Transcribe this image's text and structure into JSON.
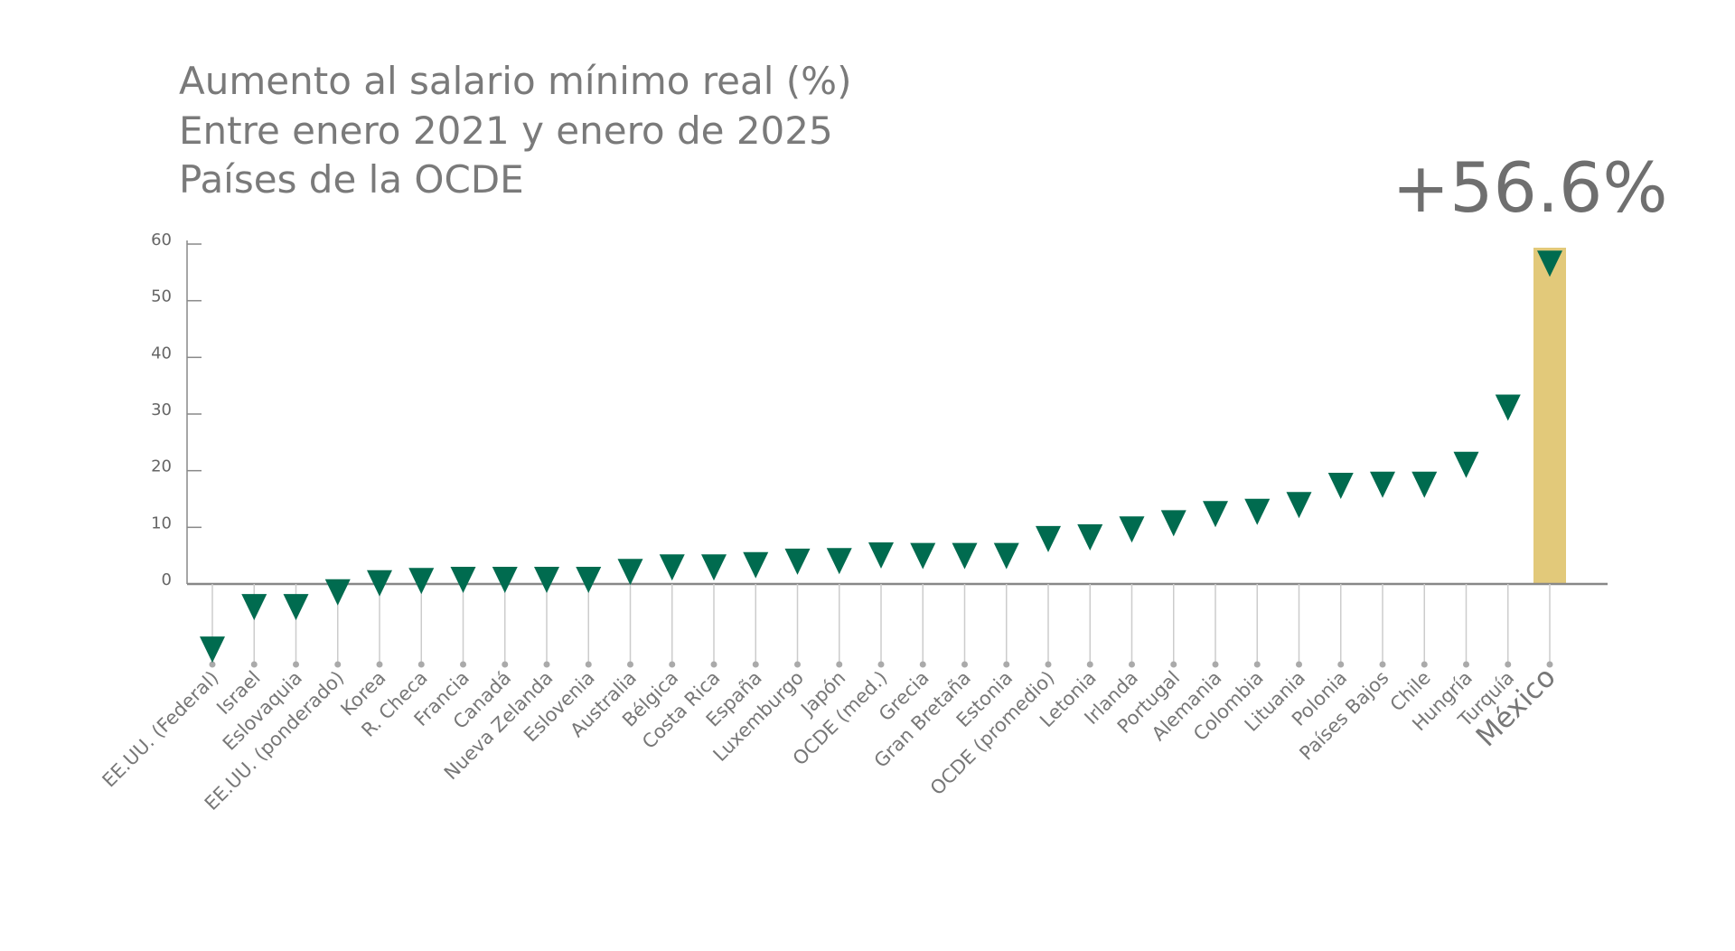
{
  "chart_data": {
    "type": "scatter",
    "title_lines": [
      "Aumento al salario mínimo real (%)",
      "Entre enero 2021 y enero de 2025",
      "Países de la OCDE"
    ],
    "categories": [
      "EE.UU. (Federal)",
      "Israel",
      "Eslovaquia",
      "EE.UU. (ponderado)",
      "Korea",
      "R. Checa",
      "Francia",
      "Canadá",
      "Nueva Zelanda",
      "Eslovenia",
      "Australia",
      "Bélgica",
      "Costa Rica",
      "España",
      "Luxemburgo",
      "Japón",
      "OCDE (med.)",
      "Grecia",
      "Gran Bretaña",
      "Estonia",
      "OCDE (promedio)",
      "Letonia",
      "Irlanda",
      "Portugal",
      "Alemania",
      "Colombia",
      "Lituania",
      "Polonia",
      "Países Bajos",
      "Chile",
      "Hungría",
      "Turquía",
      "México"
    ],
    "values": [
      -11.5,
      -4,
      -4,
      -1.4,
      0.2,
      0.6,
      0.8,
      0.8,
      0.8,
      0.8,
      2.2,
      3,
      3,
      3.4,
      4,
      4.1,
      5.1,
      5,
      5,
      5,
      8,
      8.3,
      9.7,
      10.8,
      12.4,
      12.8,
      14,
      17.4,
      17.6,
      17.6,
      21.1,
      31.2,
      56.6
    ],
    "color": "#006b4f",
    "highlight": "México",
    "highlight_color": "#e2c97a",
    "annotation": "+56.6%",
    "ylim": [
      -15,
      60
    ],
    "yticks": [
      0,
      10,
      20,
      30,
      40,
      50,
      60
    ]
  }
}
